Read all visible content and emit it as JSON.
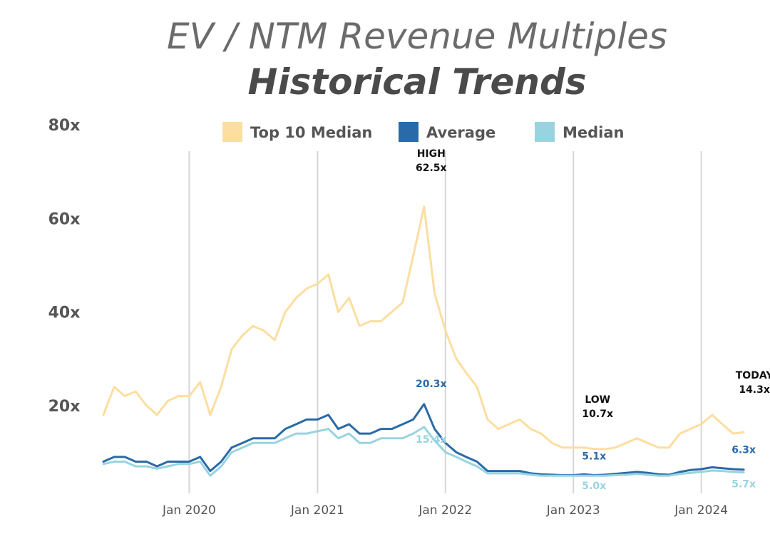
{
  "title": "EV / NTM Revenue Multiples",
  "subtitle": "Historical Trends",
  "colors": {
    "top10": "#fcdea0",
    "average": "#2a6aa8",
    "median": "#98d4df",
    "grid": "#d6d6d6",
    "annotation": "#111111"
  },
  "chart_data": {
    "type": "line",
    "title": "EV / NTM Revenue Multiples",
    "subtitle": "Historical Trends",
    "ylim": [
      0,
      80
    ],
    "y_ticks": [
      "80x",
      "60x",
      "40x",
      "20x"
    ],
    "y_tick_values": [
      80,
      60,
      40,
      20
    ],
    "x_range": [
      "2019-05-01",
      "2024-05-15"
    ],
    "x_ticks": [
      "Jan 2020",
      "Jan 2021",
      "Jan 2022",
      "Jan 2023",
      "Jan 2024"
    ],
    "x_tick_dates": [
      "2020-01-01",
      "2021-01-01",
      "2022-01-01",
      "2023-01-01",
      "2024-01-01"
    ],
    "legend_position": "top",
    "series": [
      {
        "name": "Top 10 Median",
        "color": "#fcdea0",
        "points": [
          [
            "2019-05-01",
            18
          ],
          [
            "2019-06-01",
            24
          ],
          [
            "2019-07-01",
            22
          ],
          [
            "2019-08-01",
            23
          ],
          [
            "2019-09-01",
            20
          ],
          [
            "2019-10-01",
            18
          ],
          [
            "2019-11-01",
            21
          ],
          [
            "2019-12-01",
            22
          ],
          [
            "2020-01-01",
            22
          ],
          [
            "2020-02-01",
            25
          ],
          [
            "2020-03-01",
            18
          ],
          [
            "2020-04-01",
            24
          ],
          [
            "2020-05-01",
            32
          ],
          [
            "2020-06-01",
            35
          ],
          [
            "2020-07-01",
            37
          ],
          [
            "2020-08-01",
            36
          ],
          [
            "2020-09-01",
            34
          ],
          [
            "2020-10-01",
            40
          ],
          [
            "2020-11-01",
            43
          ],
          [
            "2020-12-01",
            45
          ],
          [
            "2021-01-01",
            46
          ],
          [
            "2021-02-01",
            48
          ],
          [
            "2021-03-01",
            40
          ],
          [
            "2021-04-01",
            43
          ],
          [
            "2021-05-01",
            37
          ],
          [
            "2021-06-01",
            38
          ],
          [
            "2021-07-01",
            38
          ],
          [
            "2021-08-01",
            40
          ],
          [
            "2021-09-01",
            42
          ],
          [
            "2021-10-01",
            52
          ],
          [
            "2021-11-01",
            62.5
          ],
          [
            "2021-12-01",
            44
          ],
          [
            "2022-01-01",
            36
          ],
          [
            "2022-02-01",
            30
          ],
          [
            "2022-03-01",
            27
          ],
          [
            "2022-04-01",
            24
          ],
          [
            "2022-05-01",
            17
          ],
          [
            "2022-06-01",
            15
          ],
          [
            "2022-07-01",
            16
          ],
          [
            "2022-08-01",
            17
          ],
          [
            "2022-09-01",
            15
          ],
          [
            "2022-10-01",
            14
          ],
          [
            "2022-11-01",
            12
          ],
          [
            "2022-12-01",
            11
          ],
          [
            "2023-01-01",
            11
          ],
          [
            "2023-02-01",
            11
          ],
          [
            "2023-03-01",
            10.7
          ],
          [
            "2023-04-01",
            10.7
          ],
          [
            "2023-05-01",
            11
          ],
          [
            "2023-06-01",
            12
          ],
          [
            "2023-07-01",
            13
          ],
          [
            "2023-08-01",
            12
          ],
          [
            "2023-09-01",
            11
          ],
          [
            "2023-10-01",
            11
          ],
          [
            "2023-11-01",
            14
          ],
          [
            "2023-12-01",
            15
          ],
          [
            "2024-01-01",
            16
          ],
          [
            "2024-02-01",
            18
          ],
          [
            "2024-03-01",
            16
          ],
          [
            "2024-04-01",
            14
          ],
          [
            "2024-05-01",
            14.3
          ]
        ]
      },
      {
        "name": "Average",
        "color": "#2a6aa8",
        "points": [
          [
            "2019-05-01",
            8
          ],
          [
            "2019-06-01",
            9
          ],
          [
            "2019-07-01",
            9
          ],
          [
            "2019-08-01",
            8
          ],
          [
            "2019-09-01",
            8
          ],
          [
            "2019-10-01",
            7
          ],
          [
            "2019-11-01",
            8
          ],
          [
            "2019-12-01",
            8
          ],
          [
            "2020-01-01",
            8
          ],
          [
            "2020-02-01",
            9
          ],
          [
            "2020-03-01",
            6
          ],
          [
            "2020-04-01",
            8
          ],
          [
            "2020-05-01",
            11
          ],
          [
            "2020-06-01",
            12
          ],
          [
            "2020-07-01",
            13
          ],
          [
            "2020-08-01",
            13
          ],
          [
            "2020-09-01",
            13
          ],
          [
            "2020-10-01",
            15
          ],
          [
            "2020-11-01",
            16
          ],
          [
            "2020-12-01",
            17
          ],
          [
            "2021-01-01",
            17
          ],
          [
            "2021-02-01",
            18
          ],
          [
            "2021-03-01",
            15
          ],
          [
            "2021-04-01",
            16
          ],
          [
            "2021-05-01",
            14
          ],
          [
            "2021-06-01",
            14
          ],
          [
            "2021-07-01",
            15
          ],
          [
            "2021-08-01",
            15
          ],
          [
            "2021-09-01",
            16
          ],
          [
            "2021-10-01",
            17
          ],
          [
            "2021-11-01",
            20.3
          ],
          [
            "2021-12-01",
            15
          ],
          [
            "2022-01-01",
            12
          ],
          [
            "2022-02-01",
            10
          ],
          [
            "2022-03-01",
            9
          ],
          [
            "2022-04-01",
            8
          ],
          [
            "2022-05-01",
            6
          ],
          [
            "2022-06-01",
            6
          ],
          [
            "2022-07-01",
            6
          ],
          [
            "2022-08-01",
            6
          ],
          [
            "2022-09-01",
            5.5
          ],
          [
            "2022-10-01",
            5.3
          ],
          [
            "2022-11-01",
            5.2
          ],
          [
            "2022-12-01",
            5.1
          ],
          [
            "2023-01-01",
            5.1
          ],
          [
            "2023-02-01",
            5.3
          ],
          [
            "2023-03-01",
            5.1
          ],
          [
            "2023-04-01",
            5.2
          ],
          [
            "2023-05-01",
            5.4
          ],
          [
            "2023-06-01",
            5.6
          ],
          [
            "2023-07-01",
            5.8
          ],
          [
            "2023-08-01",
            5.6
          ],
          [
            "2023-09-01",
            5.3
          ],
          [
            "2023-10-01",
            5.2
          ],
          [
            "2023-11-01",
            5.8
          ],
          [
            "2023-12-01",
            6.2
          ],
          [
            "2024-01-01",
            6.4
          ],
          [
            "2024-02-01",
            6.8
          ],
          [
            "2024-03-01",
            6.6
          ],
          [
            "2024-04-01",
            6.4
          ],
          [
            "2024-05-01",
            6.3
          ]
        ]
      },
      {
        "name": "Median",
        "color": "#98d4df",
        "points": [
          [
            "2019-05-01",
            7.5
          ],
          [
            "2019-06-01",
            8
          ],
          [
            "2019-07-01",
            8
          ],
          [
            "2019-08-01",
            7
          ],
          [
            "2019-09-01",
            7
          ],
          [
            "2019-10-01",
            6.5
          ],
          [
            "2019-11-01",
            7
          ],
          [
            "2019-12-01",
            7.5
          ],
          [
            "2020-01-01",
            7.5
          ],
          [
            "2020-02-01",
            8
          ],
          [
            "2020-03-01",
            5
          ],
          [
            "2020-04-01",
            7
          ],
          [
            "2020-05-01",
            10
          ],
          [
            "2020-06-01",
            11
          ],
          [
            "2020-07-01",
            12
          ],
          [
            "2020-08-01",
            12
          ],
          [
            "2020-09-01",
            12
          ],
          [
            "2020-10-01",
            13
          ],
          [
            "2020-11-01",
            14
          ],
          [
            "2020-12-01",
            14
          ],
          [
            "2021-01-01",
            14.5
          ],
          [
            "2021-02-01",
            15
          ],
          [
            "2021-03-01",
            13
          ],
          [
            "2021-04-01",
            14
          ],
          [
            "2021-05-01",
            12
          ],
          [
            "2021-06-01",
            12
          ],
          [
            "2021-07-01",
            13
          ],
          [
            "2021-08-01",
            13
          ],
          [
            "2021-09-01",
            13
          ],
          [
            "2021-10-01",
            14
          ],
          [
            "2021-11-01",
            15.4
          ],
          [
            "2021-12-01",
            12.5
          ],
          [
            "2022-01-01",
            10
          ],
          [
            "2022-02-01",
            9
          ],
          [
            "2022-03-01",
            8
          ],
          [
            "2022-04-01",
            7
          ],
          [
            "2022-05-01",
            5.5
          ],
          [
            "2022-06-01",
            5.5
          ],
          [
            "2022-07-01",
            5.5
          ],
          [
            "2022-08-01",
            5.5
          ],
          [
            "2022-09-01",
            5.2
          ],
          [
            "2022-10-01",
            5.0
          ],
          [
            "2022-11-01",
            5.0
          ],
          [
            "2022-12-01",
            5.0
          ],
          [
            "2023-01-01",
            5.0
          ],
          [
            "2023-02-01",
            5.0
          ],
          [
            "2023-03-01",
            5.0
          ],
          [
            "2023-04-01",
            5.0
          ],
          [
            "2023-05-01",
            5.1
          ],
          [
            "2023-06-01",
            5.2
          ],
          [
            "2023-07-01",
            5.4
          ],
          [
            "2023-08-01",
            5.2
          ],
          [
            "2023-09-01",
            5.0
          ],
          [
            "2023-10-01",
            5.0
          ],
          [
            "2023-11-01",
            5.4
          ],
          [
            "2023-12-01",
            5.6
          ],
          [
            "2024-01-01",
            5.8
          ],
          [
            "2024-02-01",
            6.1
          ],
          [
            "2024-03-01",
            6.0
          ],
          [
            "2024-04-01",
            5.8
          ],
          [
            "2024-05-01",
            5.7
          ]
        ]
      }
    ],
    "annotations": [
      {
        "lines": [
          "HIGH",
          "62.5x"
        ],
        "date": "2021-11-01",
        "value": 62.5,
        "color": "#111111"
      },
      {
        "lines": [
          "20.3x"
        ],
        "date": "2021-11-01",
        "value": 20.3,
        "color": "#2a6aa8"
      },
      {
        "lines": [
          "15.4x"
        ],
        "date": "2021-11-01",
        "value": 15.4,
        "color": "#98d4df"
      },
      {
        "lines": [
          "LOW",
          "10.7x"
        ],
        "date": "2023-03-01",
        "value": 10.7,
        "color": "#111111"
      },
      {
        "lines": [
          "5.1x"
        ],
        "date": "2023-03-01",
        "value": 5.1,
        "color": "#2a6aa8"
      },
      {
        "lines": [
          "5.0x"
        ],
        "date": "2023-03-01",
        "value": 5.0,
        "color": "#98d4df"
      },
      {
        "lines": [
          "TODAY",
          "14.3x"
        ],
        "date": "2024-05-01",
        "value": 14.3,
        "color": "#111111"
      },
      {
        "lines": [
          "6.3x"
        ],
        "date": "2024-05-01",
        "value": 6.3,
        "color": "#2a6aa8"
      },
      {
        "lines": [
          "5.7x"
        ],
        "date": "2024-05-01",
        "value": 5.7,
        "color": "#98d4df"
      }
    ]
  }
}
